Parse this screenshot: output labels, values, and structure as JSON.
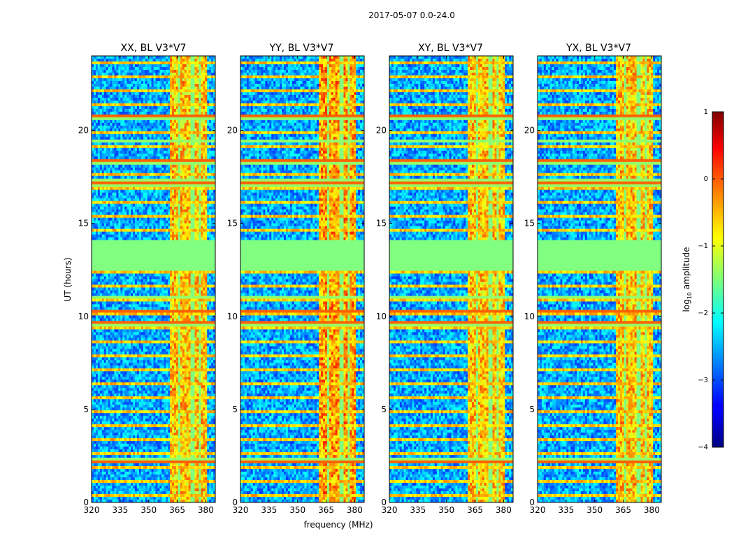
{
  "figure": {
    "suptitle": "2017-05-07 0.0-24.0",
    "xlabel": "frequency (MHz)",
    "ylabel": "UT (hours)"
  },
  "colorbar": {
    "label": "log10 amplitude",
    "label_base": "log",
    "label_sub": "10",
    "label_rest": " amplitude",
    "range": [
      -4,
      1
    ],
    "ticks": [
      1,
      0,
      -1,
      -2,
      -3,
      -4
    ],
    "tick_labels": [
      "1",
      "0",
      "−1",
      "−2",
      "−3",
      "−4"
    ],
    "colormap": "jet"
  },
  "chart_data": {
    "type": "heatmap",
    "x_range": [
      320,
      385
    ],
    "y_range": [
      0,
      24
    ],
    "xticks": [
      320,
      335,
      350,
      365,
      380
    ],
    "yticks": [
      0,
      5,
      10,
      15,
      20
    ],
    "rfi_band_mhz": [
      361,
      381
    ],
    "rfi_channel_gaps_mhz": [
      366,
      373,
      377
    ],
    "flagged_hours": [
      [
        12.4,
        14.1
      ],
      [
        20.5,
        20.9
      ],
      [
        17.0,
        17.4
      ],
      [
        18.2,
        18.4
      ],
      [
        19.3,
        19.5
      ],
      [
        9.5,
        9.8
      ],
      [
        10.2,
        10.4
      ],
      [
        10.9,
        11.1
      ],
      [
        2.1,
        2.4
      ]
    ],
    "panels": [
      {
        "title": "XX, BL V3*V7",
        "polarization": "XX"
      },
      {
        "title": "YY, BL V3*V7",
        "polarization": "YY"
      },
      {
        "title": "XY, BL V3*V7",
        "polarization": "XY"
      },
      {
        "title": "YX, BL V3*V7",
        "polarization": "YX"
      }
    ]
  }
}
